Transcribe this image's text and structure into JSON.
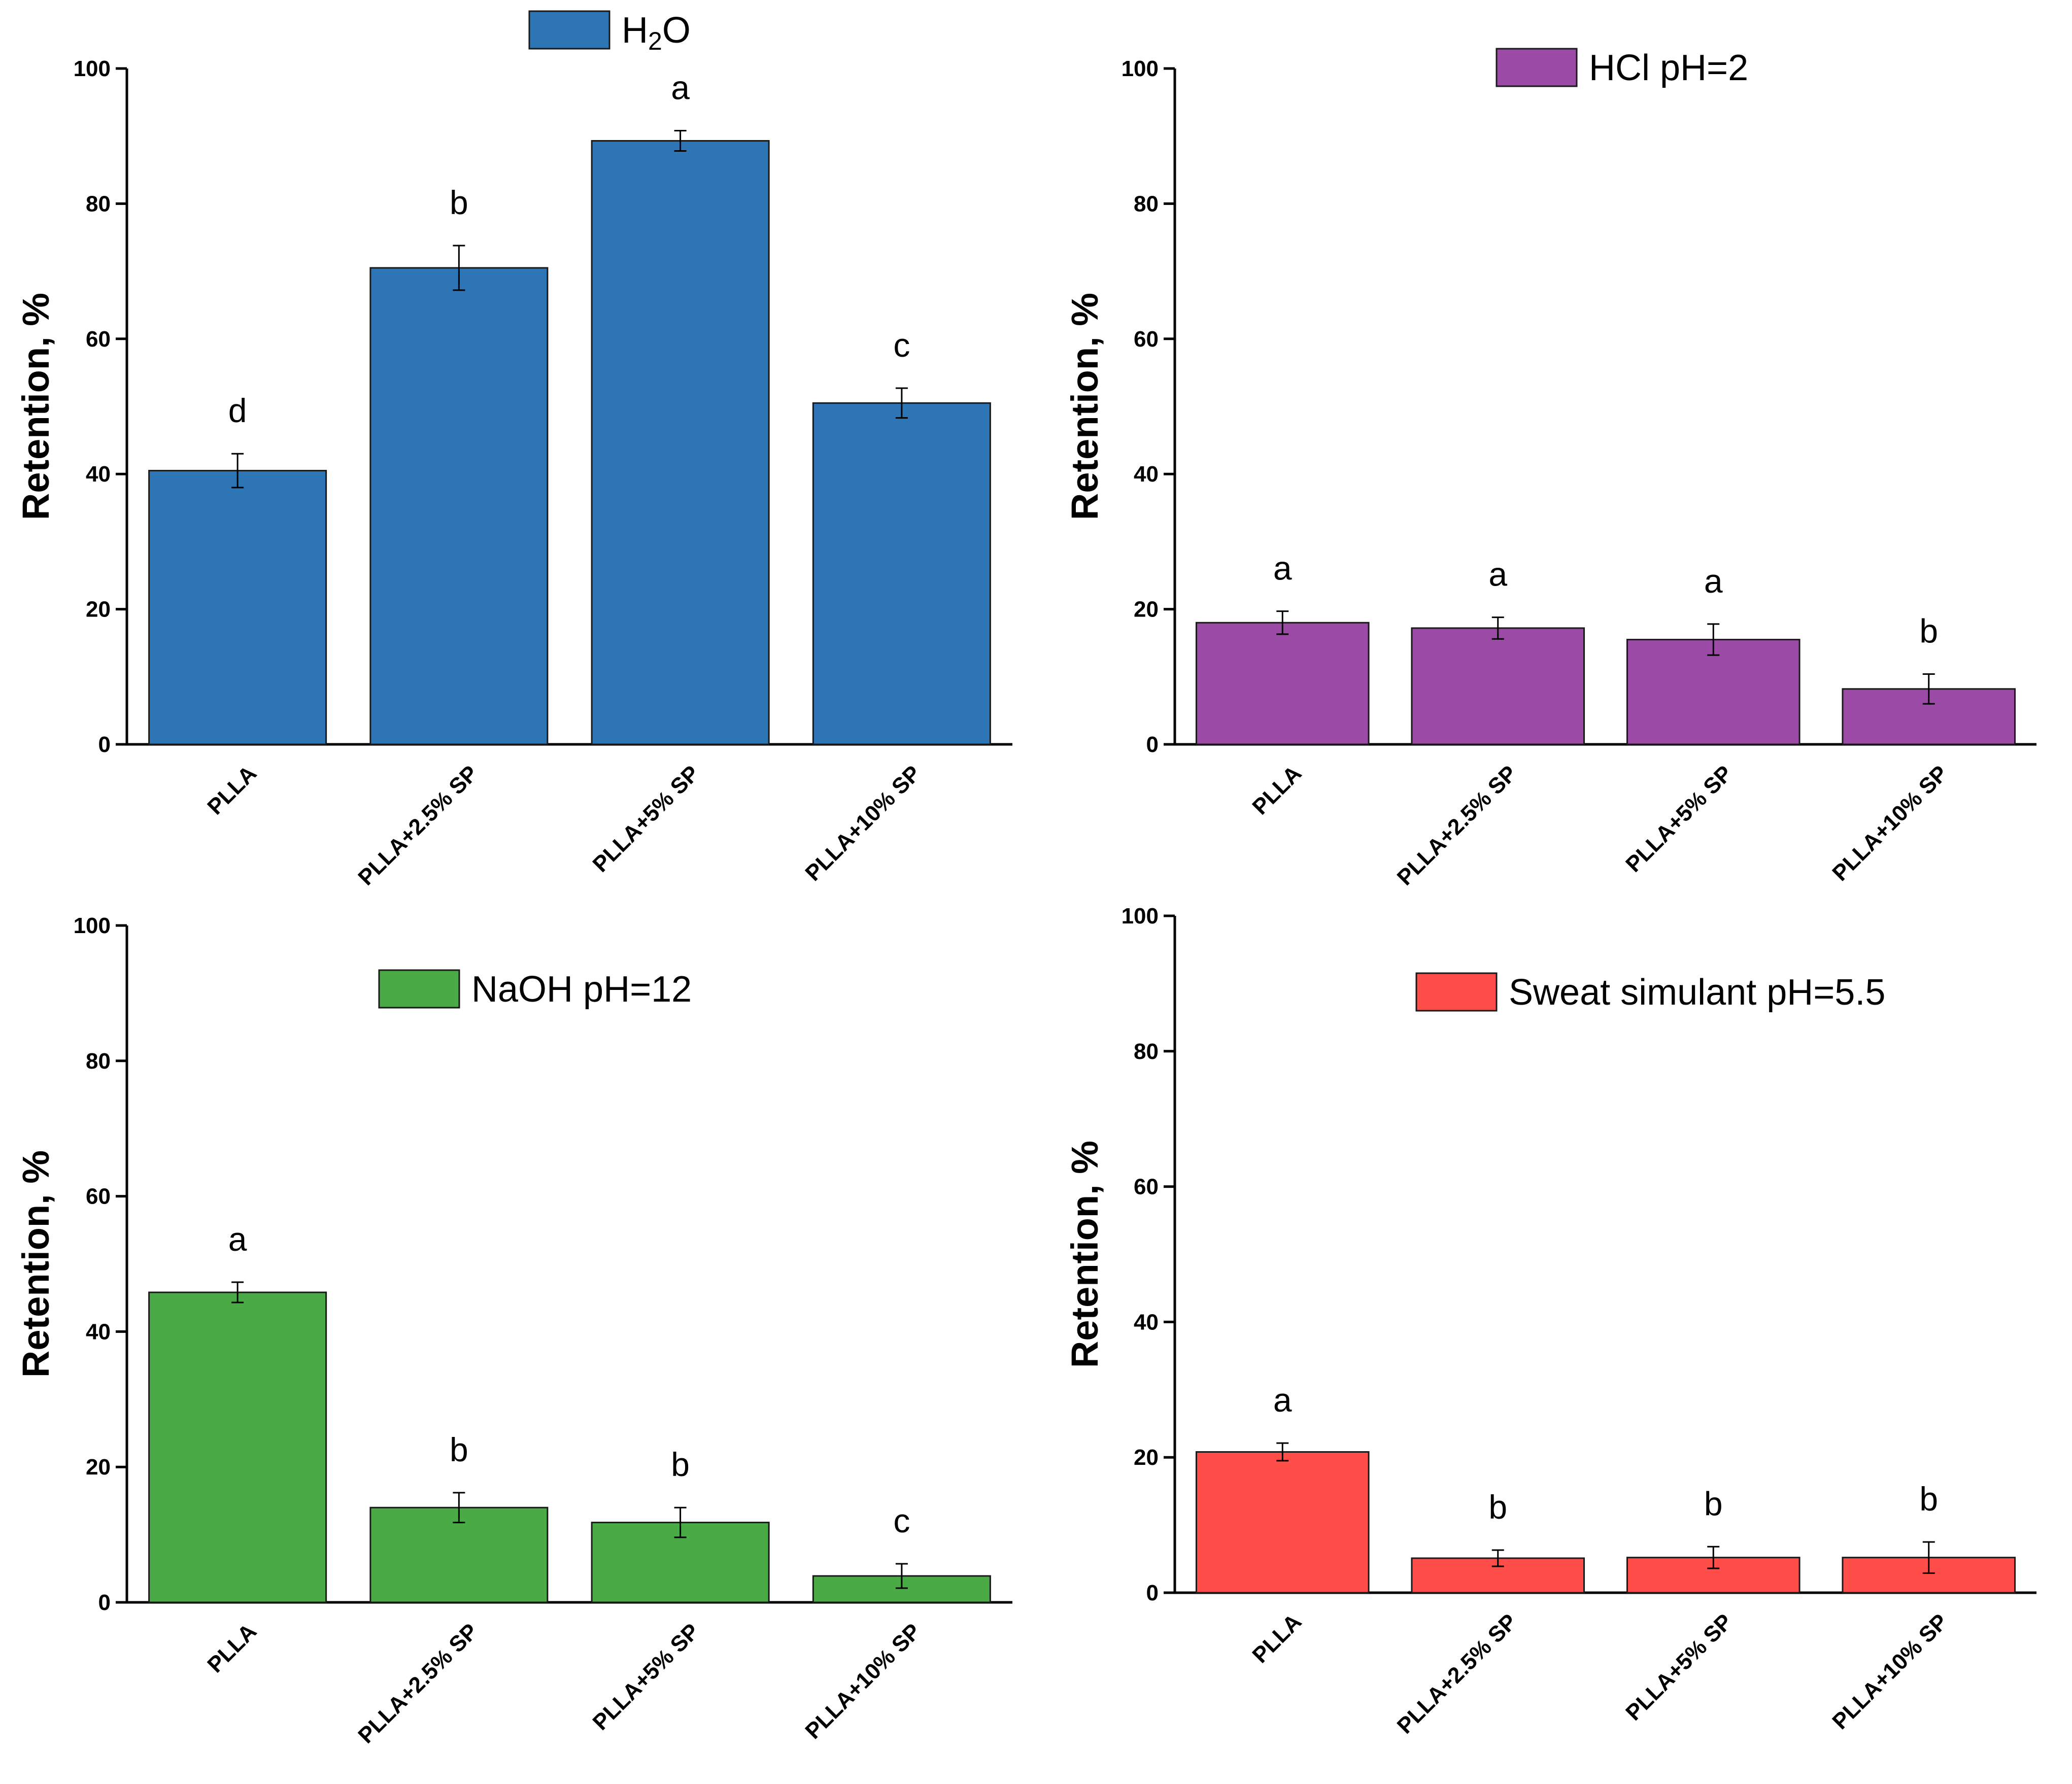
{
  "chart_data": [
    {
      "type": "bar",
      "name": "h2o",
      "legend": {
        "prefix": "H",
        "sub": "2",
        "suffix": "O",
        "label": "H2O"
      },
      "color": "#2E75B6",
      "categories": [
        "PLLA",
        "PLLA+2.5% SP",
        "PLLA+5% SP",
        "PLLA+10% SP"
      ],
      "values": [
        40.5,
        70.5,
        89.3,
        50.5
      ],
      "errors": [
        2.5,
        3.3,
        1.5,
        2.2
      ],
      "letters": [
        "d",
        "b",
        "a",
        "c"
      ],
      "ylabel": "Retention, %",
      "ylim": [
        0,
        100
      ],
      "yticks": [
        "0",
        "20",
        "40",
        "60",
        "80",
        "100"
      ]
    },
    {
      "type": "bar",
      "name": "hcl",
      "legend": {
        "label": "HCl pH=2"
      },
      "color": "#9B4AA6",
      "categories": [
        "PLLA",
        "PLLA+2.5% SP",
        "PLLA+5% SP",
        "PLLA+10% SP"
      ],
      "values": [
        18.0,
        17.2,
        15.5,
        8.2
      ],
      "errors": [
        1.7,
        1.6,
        2.3,
        2.2
      ],
      "letters": [
        "a",
        "a",
        "a",
        "b"
      ],
      "ylabel": "Retention, %",
      "ylim": [
        0,
        100
      ],
      "yticks": [
        "0",
        "20",
        "40",
        "60",
        "80",
        "100"
      ]
    },
    {
      "type": "bar",
      "name": "naoh",
      "legend": {
        "label": "NaOH pH=12"
      },
      "color": "#4AAA46",
      "categories": [
        "PLLA",
        "PLLA+2.5% SP",
        "PLLA+5% SP",
        "PLLA+10% SP"
      ],
      "values": [
        45.8,
        14.0,
        11.8,
        3.9
      ],
      "errors": [
        1.5,
        2.2,
        2.2,
        1.8
      ],
      "letters": [
        "a",
        "b",
        "b",
        "c"
      ],
      "ylabel": "Retention, %",
      "ylim": [
        0,
        100
      ],
      "yticks": [
        "0",
        "20",
        "40",
        "60",
        "80",
        "100"
      ]
    },
    {
      "type": "bar",
      "name": "sweat",
      "legend": {
        "label": "Sweat simulant pH=5.5"
      },
      "color": "#FF4E4A",
      "categories": [
        "PLLA",
        "PLLA+2.5% SP",
        "PLLA+5% SP",
        "PLLA+10% SP"
      ],
      "values": [
        20.8,
        5.1,
        5.2,
        5.2
      ],
      "errors": [
        1.3,
        1.2,
        1.6,
        2.3
      ],
      "letters": [
        "a",
        "b",
        "b",
        "b"
      ],
      "ylabel": "Retention, %",
      "ylim": [
        0,
        100
      ],
      "yticks": [
        "0",
        "20",
        "40",
        "60",
        "80",
        "100"
      ]
    }
  ]
}
